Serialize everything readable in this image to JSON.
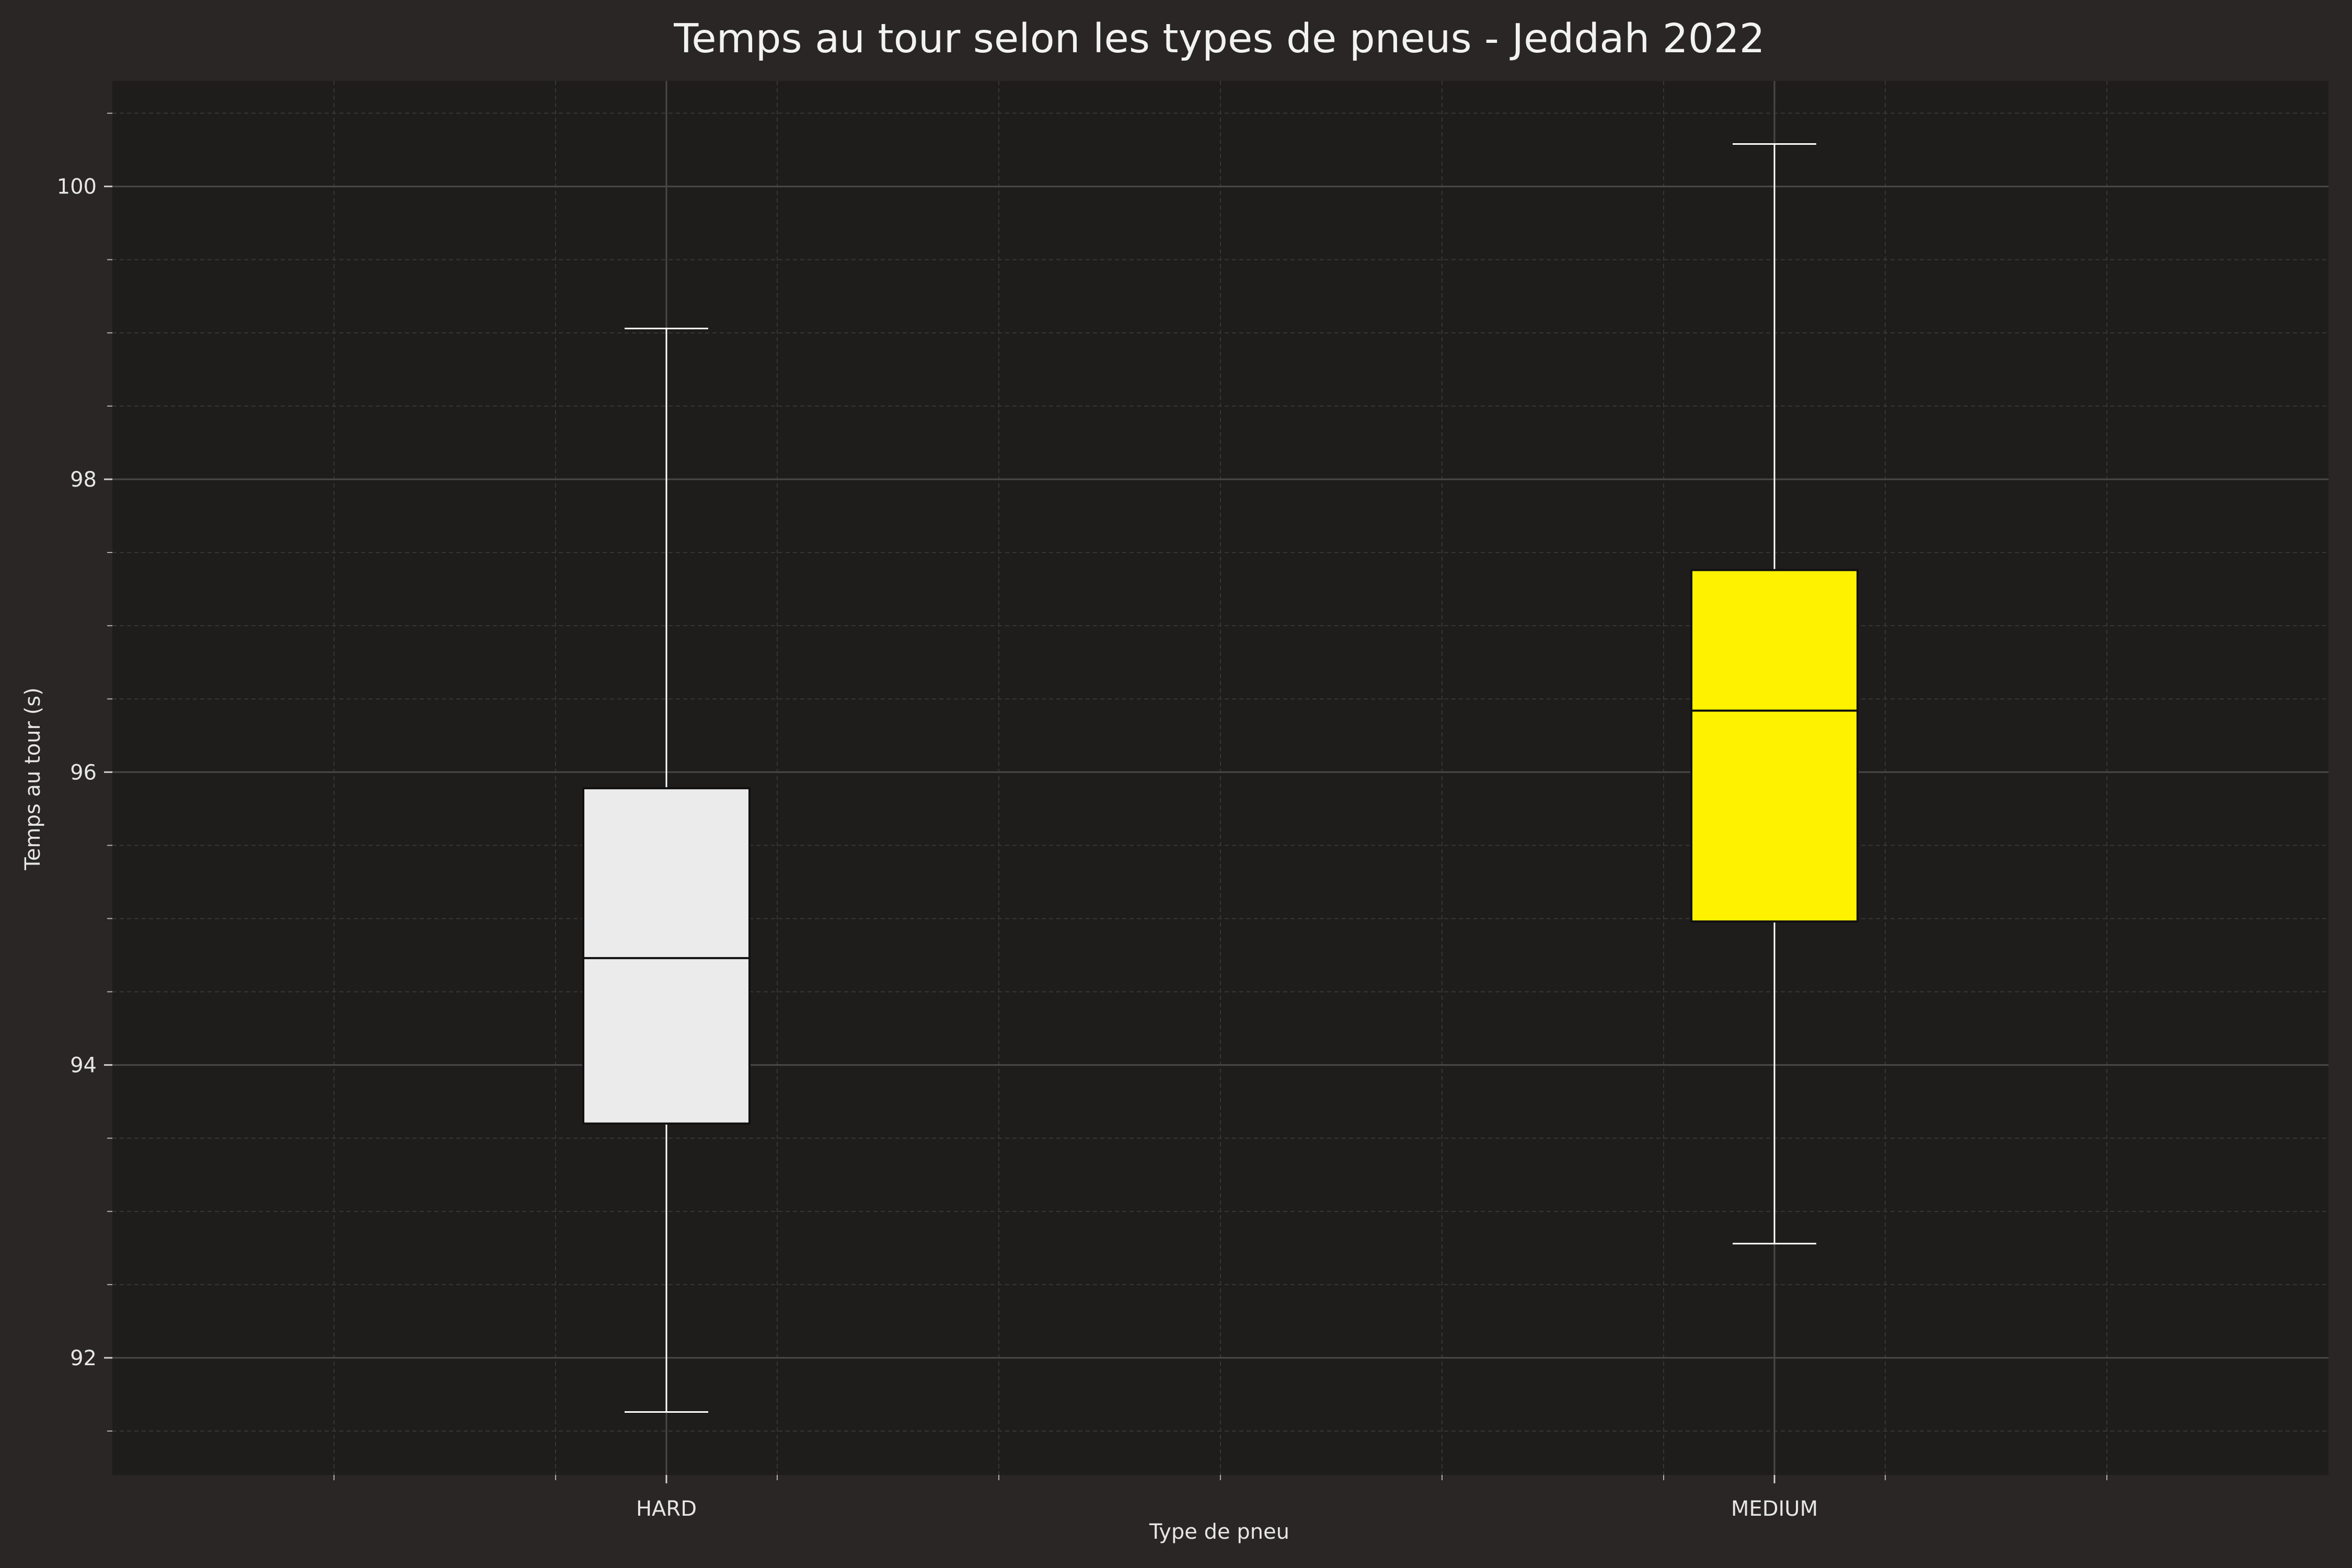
{
  "chart_data": {
    "type": "box",
    "title": "Temps au tour selon les types de pneus - Jeddah 2022",
    "xlabel": "Type de pneu",
    "ylabel": "Temps au tour (s)",
    "ylim": [
      91.2,
      100.72
    ],
    "yticks": [
      92,
      94,
      96,
      98,
      100
    ],
    "grid": true,
    "categories": [
      "HARD",
      "MEDIUM"
    ],
    "boxes": [
      {
        "category": "HARD",
        "whisker_low": 91.63,
        "q1": 93.6,
        "median": 94.73,
        "q3": 95.89,
        "whisker_high": 99.03,
        "color": "#ebebeb"
      },
      {
        "category": "MEDIUM",
        "whisker_low": 92.78,
        "q1": 94.98,
        "median": 96.42,
        "q3": 97.38,
        "whisker_high": 100.29,
        "color": "#fff200"
      }
    ],
    "colors": {
      "background": "#292625",
      "plot_background": "#1e1d1c",
      "grid_major": "#4a4847",
      "grid_minor": "#383635",
      "whisker": "#ffffff",
      "box_edge": "#111111"
    }
  }
}
